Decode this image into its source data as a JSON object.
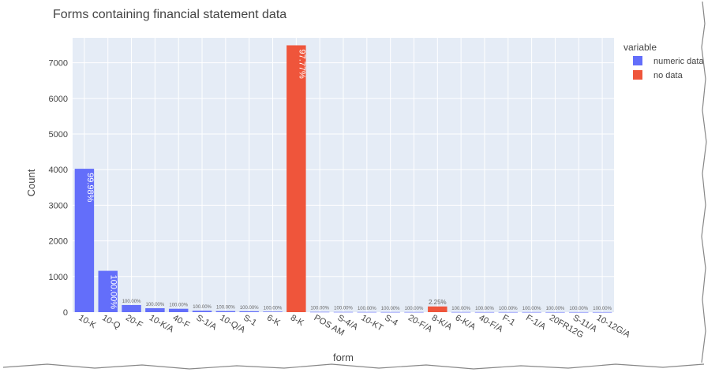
{
  "chart_data": {
    "type": "bar",
    "title": "Forms containing financial statement data",
    "xlabel": "form",
    "ylabel": "Count",
    "ylim": [
      0,
      7700
    ],
    "yticks": [
      0,
      1000,
      2000,
      3000,
      4000,
      5000,
      6000,
      7000
    ],
    "grid": true,
    "legend": {
      "title": "variable",
      "position": "top-right"
    },
    "categories": [
      "10-K",
      "10-Q",
      "20-F",
      "10-K/A",
      "40-F",
      "S-1/A",
      "10-Q/A",
      "S-1",
      "6-K",
      "8-K",
      "POS AM",
      "S-4/A",
      "10-KT",
      "S-4",
      "20-F/A",
      "8-K/A",
      "6-K/A",
      "40-F/A",
      "F-1",
      "F-1/A",
      "20FR12G",
      "S-11/A",
      "10-12G/A"
    ],
    "series": [
      {
        "name": "numeric data",
        "color": "#636efa",
        "values": [
          4025,
          1160,
          200,
          110,
          95,
          40,
          30,
          25,
          15,
          0,
          8,
          6,
          5,
          4,
          4,
          0,
          4,
          3,
          3,
          3,
          2,
          2,
          2
        ],
        "labels": [
          "99.98%",
          "100.00%",
          "100.00%",
          "100.00%",
          "100.00%",
          "100.00%",
          "100.00%",
          "100.00%",
          "100.00%",
          "",
          "100.00%",
          "100.00%",
          "100.00%",
          "100.00%",
          "100.00%",
          "",
          "100.00%",
          "100.00%",
          "100.00%",
          "100.00%",
          "100.00%",
          "100.00%",
          "100.00%"
        ]
      },
      {
        "name": "no data",
        "color": "#ef553b",
        "values": [
          0,
          0,
          0,
          0,
          0,
          0,
          0,
          0,
          0,
          7490,
          0,
          0,
          0,
          0,
          0,
          160,
          0,
          0,
          0,
          0,
          0,
          0,
          0
        ],
        "labels": [
          "",
          "",
          "",
          "",
          "",
          "",
          "",
          "",
          "",
          "97.77%",
          "",
          "",
          "",
          "",
          "",
          "2.25%",
          "",
          "",
          "",
          "",
          "",
          "",
          ""
        ]
      }
    ],
    "inside_labels": {
      "0": "99.98%",
      "1": "100.00%",
      "9": "97.77%"
    }
  }
}
